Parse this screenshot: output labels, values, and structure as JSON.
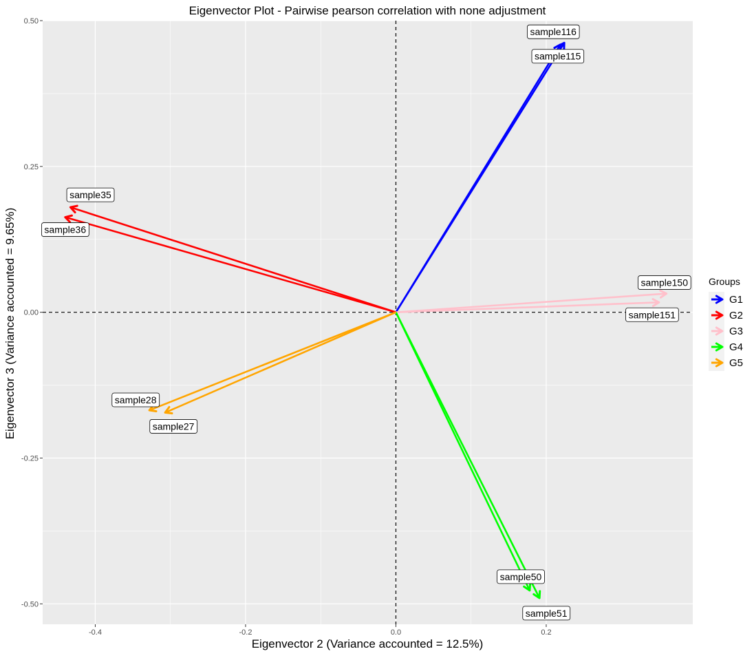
{
  "chart_data": {
    "type": "vector",
    "title": "Eigenvector Plot - Pairwise pearson correlation with none adjustment",
    "xlabel": "Eigenvector 2 (Variance accounted = 12.5%)",
    "ylabel": "Eigenvector 3 (Variance accounted = 9.65%)",
    "xlim": [
      -0.47,
      0.395
    ],
    "ylim": [
      -0.535,
      0.5
    ],
    "x_ticks": [
      -0.4,
      -0.2,
      0.0,
      0.2
    ],
    "x_tick_labels": [
      "-0.4",
      "-0.2",
      "0.0",
      "0.2"
    ],
    "y_ticks": [
      -0.5,
      -0.25,
      0.0,
      0.25,
      0.5
    ],
    "y_tick_labels": [
      "-0.50",
      "-0.25",
      "0.00",
      "0.25",
      "0.50"
    ],
    "reference_lines": {
      "x": 0,
      "y": 0,
      "style": "dashed"
    },
    "grid": true,
    "legend": {
      "title": "Groups",
      "position": "right",
      "entries": [
        "G1",
        "G2",
        "G3",
        "G4",
        "G5"
      ]
    },
    "group_colors": {
      "G1": "#0000ff",
      "G2": "#ff0000",
      "G3": "#ffc0cb",
      "G4": "#00ff00",
      "G5": "#ffa500"
    },
    "vectors": [
      {
        "label": "sample116",
        "group": "G1",
        "x": 0.224,
        "y": 0.462
      },
      {
        "label": "sample115",
        "group": "G1",
        "x": 0.219,
        "y": 0.459
      },
      {
        "label": "sample35",
        "group": "G2",
        "x": -0.433,
        "y": 0.18
      },
      {
        "label": "sample36",
        "group": "G2",
        "x": -0.44,
        "y": 0.163
      },
      {
        "label": "sample150",
        "group": "G3",
        "x": 0.36,
        "y": 0.032
      },
      {
        "label": "sample151",
        "group": "G3",
        "x": 0.35,
        "y": 0.017
      },
      {
        "label": "sample50",
        "group": "G4",
        "x": 0.178,
        "y": -0.477
      },
      {
        "label": "sample51",
        "group": "G4",
        "x": 0.191,
        "y": -0.49
      },
      {
        "label": "sample28",
        "group": "G5",
        "x": -0.328,
        "y": -0.168
      },
      {
        "label": "sample27",
        "group": "G5",
        "x": -0.307,
        "y": -0.172
      }
    ]
  }
}
